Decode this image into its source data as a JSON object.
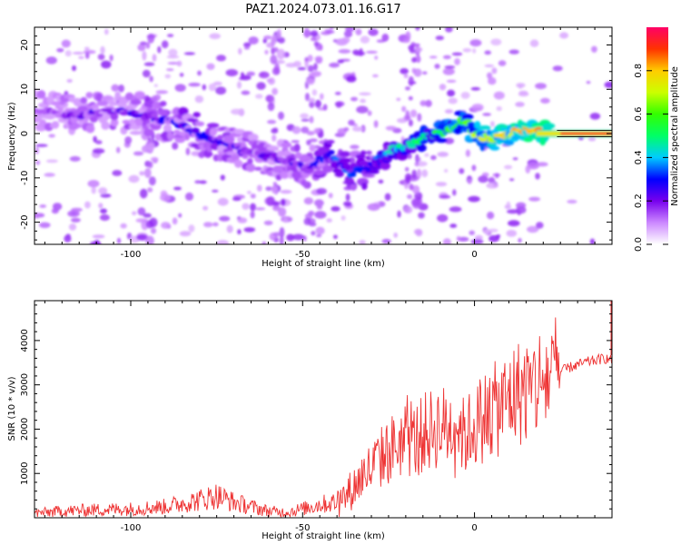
{
  "title": "PAZ1.2024.073.01.16.G17",
  "chart_data": [
    {
      "type": "heatmap",
      "xlabel": "Height of straight line (km)",
      "ylabel": "Frequency (Hz)",
      "xlim": [
        -128,
        40
      ],
      "ylim": [
        -25,
        24
      ],
      "xticks": [
        -100,
        -50,
        0
      ],
      "yticks": [
        -20,
        -10,
        0,
        10,
        20
      ],
      "colorbar": {
        "label": "Normalized spectral amplitude",
        "range": [
          0,
          1
        ],
        "ticks": [
          0.0,
          0.2,
          0.4,
          0.6,
          0.8
        ],
        "colormap": [
          "#ffffff",
          "#cc88ff",
          "#7700ee",
          "#0000ff",
          "#00ccff",
          "#00ff66",
          "#33ff00",
          "#ccff00",
          "#ffcc00",
          "#ff3300",
          "#ff0066"
        ]
      },
      "ridge": {
        "x": [
          -125,
          -115,
          -105,
          -95,
          -85,
          -78,
          -70,
          -62,
          -55,
          -48,
          -42,
          -36,
          -30,
          -25,
          -20,
          -15,
          -10,
          -6,
          -3,
          0,
          5,
          10,
          15,
          20,
          25,
          40
        ],
        "y": [
          5,
          4,
          5,
          4,
          2,
          -1,
          -3,
          -5,
          -6,
          -8,
          -4,
          -9,
          -7,
          -4,
          -3,
          -1,
          0,
          1,
          3,
          0,
          -1,
          0,
          1,
          0,
          0,
          0
        ],
        "amplitude": [
          0.15,
          0.18,
          0.2,
          0.22,
          0.25,
          0.25,
          0.2,
          0.2,
          0.2,
          0.22,
          0.3,
          0.3,
          0.3,
          0.4,
          0.45,
          0.5,
          0.55,
          0.6,
          0.6,
          0.65,
          0.7,
          0.75,
          0.8,
          0.85,
          0.9,
          0.9
        ]
      }
    },
    {
      "type": "line",
      "xlabel": "Height of straight line (km)",
      "ylabel": "SNR (10 * v/v)",
      "xlim": [
        -128,
        40
      ],
      "ylim": [
        0,
        4900
      ],
      "xticks": [
        -100,
        -50,
        0
      ],
      "yticks": [
        1000,
        2000,
        3000,
        4000
      ],
      "series": [
        {
          "color": "#ee3333",
          "x": [
            -128,
            -120,
            -110,
            -100,
            -90,
            -80,
            -75,
            -70,
            -65,
            -60,
            -55,
            -50,
            -45,
            -40,
            -38,
            -35,
            -32,
            -30,
            -28,
            -25,
            -22,
            -20,
            -18,
            -15,
            -12,
            -10,
            -8,
            -5,
            -3,
            0,
            3,
            5,
            8,
            10,
            12,
            15,
            18,
            20,
            22,
            25,
            28,
            30,
            32,
            35,
            38,
            40
          ],
          "y": [
            100,
            150,
            180,
            200,
            250,
            400,
            500,
            350,
            250,
            150,
            120,
            200,
            300,
            350,
            450,
            700,
            1000,
            1100,
            1300,
            1500,
            1700,
            1800,
            1700,
            1900,
            2000,
            2100,
            2000,
            2200,
            1800,
            2100,
            2300,
            2400,
            2500,
            2700,
            2800,
            2900,
            3000,
            3100,
            3200,
            3300,
            3400,
            3450,
            3500,
            3550,
            3600,
            3550
          ]
        }
      ]
    }
  ]
}
